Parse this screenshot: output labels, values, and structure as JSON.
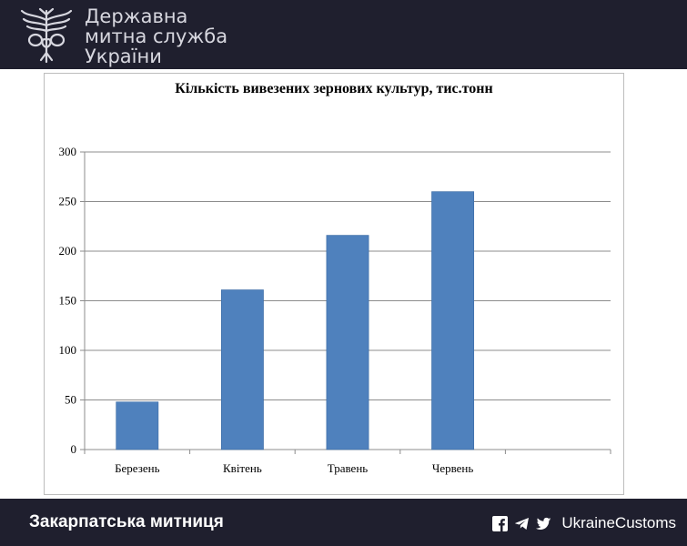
{
  "header": {
    "brand_line1": "Державна",
    "brand_line2": "митна служба",
    "brand_line3": "України",
    "logo_icon": "customs-emblem-icon"
  },
  "footer": {
    "office": "Закарпатська митниця",
    "handle": "UkraineCustoms",
    "icons": [
      "facebook-icon",
      "telegram-icon",
      "twitter-icon"
    ]
  },
  "colors": {
    "bar": "#4f81bd",
    "bar_stroke": "#3a6aa3",
    "header_bg": "#1f1f2e",
    "grid": "#8c8c8c"
  },
  "chart_data": {
    "type": "bar",
    "title": "Кількість вивезених зернових культур, тис.тонн",
    "categories": [
      "Березень",
      "Квітень",
      "Травень",
      "Червень"
    ],
    "values": [
      48,
      161,
      216,
      260
    ],
    "ylim": [
      0,
      300
    ],
    "yticks": [
      0,
      50,
      100,
      150,
      200,
      250,
      300
    ],
    "xlabel": "",
    "ylabel": "",
    "grid": true,
    "legend": "none"
  }
}
